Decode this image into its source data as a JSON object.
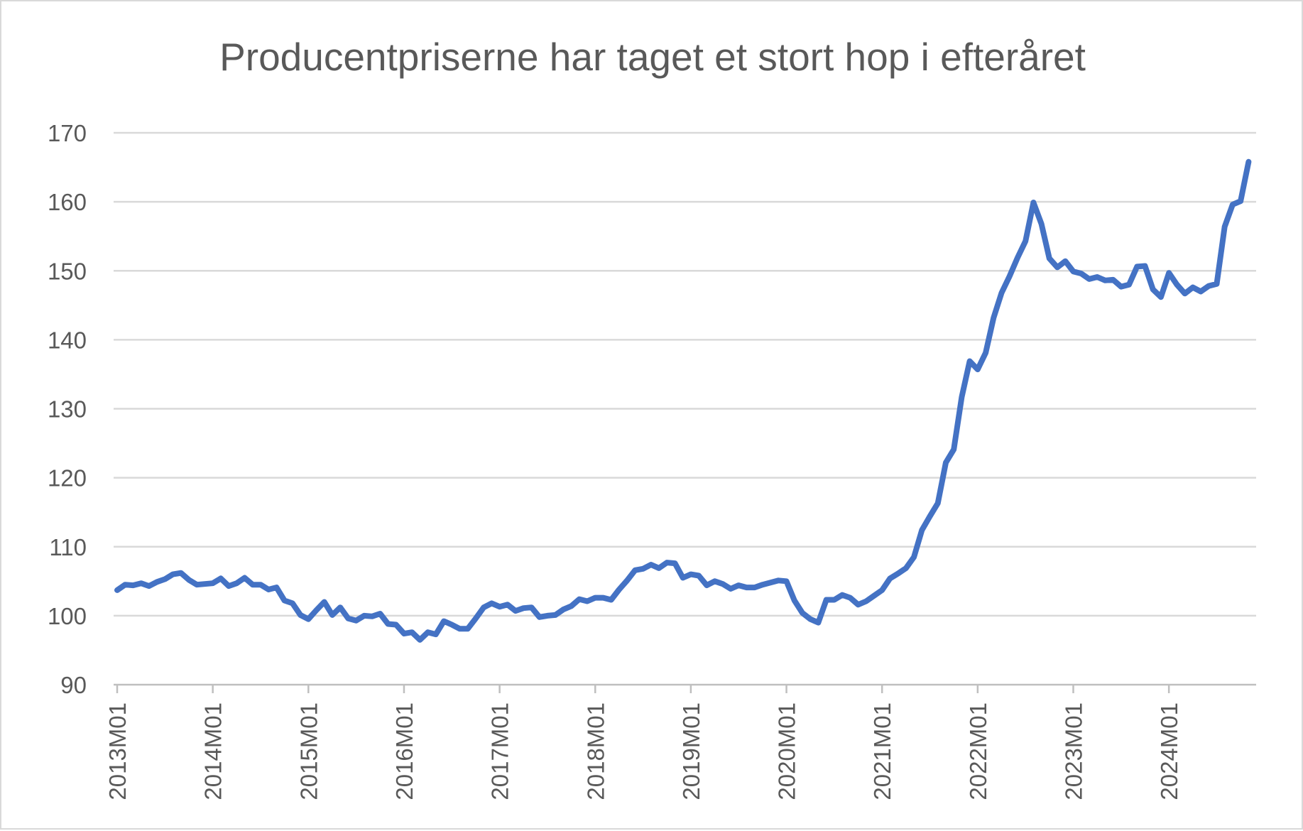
{
  "chart_data": {
    "type": "line",
    "title": "Producentpriserne har taget et stort hop i efteråret",
    "xlabel": "",
    "ylabel": "",
    "ylim": [
      90,
      170
    ],
    "yticks": [
      90,
      100,
      110,
      120,
      130,
      140,
      150,
      160,
      170
    ],
    "xtick_labels": [
      "2013M01",
      "2014M01",
      "2015M01",
      "2016M01",
      "2017M01",
      "2018M01",
      "2019M01",
      "2020M01",
      "2021M01",
      "2022M01",
      "2023M01",
      "2024M01"
    ],
    "grid": true,
    "legend": "none",
    "colors": {
      "series": "#4472c4"
    },
    "x_start": "2013M01",
    "series": [
      {
        "name": "",
        "values": [
          103.7,
          104.5,
          104.4,
          104.7,
          104.3,
          104.9,
          105.3,
          106.0,
          106.2,
          105.2,
          104.5,
          104.6,
          104.7,
          105.4,
          104.3,
          104.7,
          105.5,
          104.5,
          104.5,
          103.8,
          104.1,
          102.2,
          101.8,
          100.1,
          99.5,
          100.8,
          102.0,
          100.1,
          101.2,
          99.6,
          99.3,
          100.0,
          99.9,
          100.3,
          98.8,
          98.7,
          97.4,
          97.6,
          96.5,
          97.6,
          97.3,
          99.2,
          98.7,
          98.1,
          98.1,
          99.6,
          101.2,
          101.8,
          101.3,
          101.6,
          100.7,
          101.1,
          101.2,
          99.8,
          100.0,
          100.1,
          100.9,
          101.4,
          102.4,
          102.1,
          102.6,
          102.6,
          102.3,
          103.8,
          105.1,
          106.6,
          106.8,
          107.4,
          106.9,
          107.7,
          107.6,
          105.5,
          106.0,
          105.8,
          104.4,
          105.0,
          104.6,
          103.9,
          104.4,
          104.1,
          104.1,
          104.5,
          104.8,
          105.1,
          105.0,
          102.2,
          100.4,
          99.5,
          99.0,
          102.3,
          102.3,
          103.0,
          102.6,
          101.6,
          102.1,
          102.9,
          103.7,
          105.4,
          106.1,
          106.9,
          108.5,
          112.4,
          114.4,
          116.3,
          122.2,
          124.1,
          131.7,
          136.9,
          135.7,
          138.1,
          143.2,
          146.8,
          149.2,
          151.9,
          154.3,
          159.9,
          156.8,
          151.8,
          150.5,
          151.4,
          149.9,
          149.6,
          148.8,
          149.1,
          148.6,
          148.7,
          147.7,
          148.0,
          150.6,
          150.7,
          147.3,
          146.2,
          149.7,
          148.0,
          146.7,
          147.6,
          147.0,
          147.8,
          148.1,
          156.4,
          159.6,
          160.1,
          165.8
        ]
      }
    ]
  }
}
